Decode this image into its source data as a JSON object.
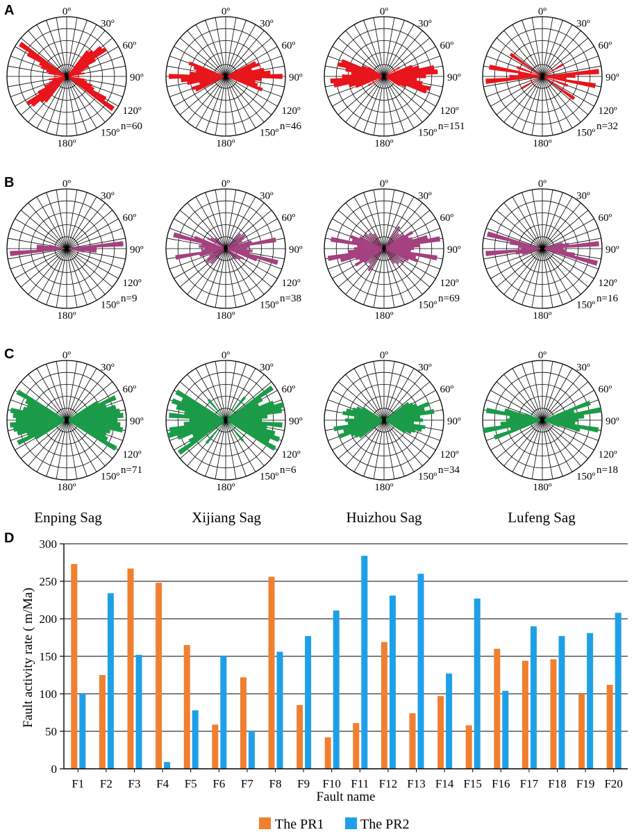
{
  "figure": {
    "panel_labels": [
      "A",
      "B",
      "C",
      "D"
    ],
    "sag_names": [
      "Enping Sag",
      "Xijiang Sag",
      "Huizhou Sag",
      "Lufeng Sag"
    ],
    "angle_labels": [
      "0º",
      "30º",
      "60º",
      "90º",
      "120º",
      "150º",
      "180º"
    ]
  },
  "rose_colors": {
    "A": "#e8141b",
    "B": "#a4407f",
    "C": "#1a9b48"
  },
  "chart_data": [
    {
      "type": "rose",
      "panel": "A",
      "sags": [
        {
          "name": "Enping Sag",
          "n_label": "n=60",
          "n": 60,
          "petals": [
            [
              40,
              0.55
            ],
            [
              45,
              0.6
            ],
            [
              50,
              0.75
            ],
            [
              55,
              0.8
            ],
            [
              60,
              0.55
            ],
            [
              65,
              0.4
            ],
            [
              70,
              0.3
            ],
            [
              75,
              0.25
            ],
            [
              80,
              0.3
            ],
            [
              90,
              0.2
            ],
            [
              100,
              0.3
            ],
            [
              105,
              0.35
            ],
            [
              110,
              0.45
            ],
            [
              115,
              0.5
            ],
            [
              120,
              0.75
            ],
            [
              125,
              0.95
            ]
          ]
        },
        {
          "name": "Xijiang Sag",
          "n_label": "n=46",
          "n": 46,
          "petals": [
            [
              65,
              0.55
            ],
            [
              70,
              0.6
            ],
            [
              75,
              0.45
            ],
            [
              80,
              0.65
            ],
            [
              85,
              0.75
            ],
            [
              90,
              0.95
            ],
            [
              95,
              0.6
            ],
            [
              100,
              0.5
            ],
            [
              105,
              0.55
            ],
            [
              110,
              0.65
            ]
          ]
        },
        {
          "name": "Huizhou Sag",
          "n_label": "n=151",
          "n": 151,
          "petals": [
            [
              60,
              0.3
            ],
            [
              70,
              0.5
            ],
            [
              75,
              0.6
            ],
            [
              80,
              0.85
            ],
            [
              85,
              0.9
            ],
            [
              90,
              0.7
            ],
            [
              95,
              0.55
            ],
            [
              100,
              0.65
            ],
            [
              105,
              0.8
            ],
            [
              110,
              0.75
            ],
            [
              115,
              0.4
            ],
            [
              120,
              0.3
            ]
          ]
        },
        {
          "name": "Lufeng Sag",
          "n_label": "n=32",
          "n": 32,
          "petals": [
            [
              60,
              0.4
            ],
            [
              85,
              0.95
            ],
            [
              90,
              0.55
            ],
            [
              95,
              0.4
            ],
            [
              100,
              0.9
            ],
            [
              110,
              0.45
            ],
            [
              125,
              0.65
            ]
          ]
        }
      ]
    },
    {
      "type": "rose",
      "panel": "B",
      "sags": [
        {
          "name": "Enping Sag",
          "n_label": "n=9",
          "n": 9,
          "petals": [
            [
              85,
              0.95
            ],
            [
              90,
              0.5
            ],
            [
              95,
              0.5
            ],
            [
              100,
              0.3
            ]
          ]
        },
        {
          "name": "Xijiang Sag",
          "n_label": "n=38",
          "n": 38,
          "petals": [
            [
              45,
              0.35
            ],
            [
              55,
              0.4
            ],
            [
              60,
              0.35
            ],
            [
              65,
              0.3
            ],
            [
              75,
              0.45
            ],
            [
              80,
              0.85
            ],
            [
              85,
              0.4
            ],
            [
              90,
              0.35
            ],
            [
              95,
              0.45
            ],
            [
              100,
              0.4
            ],
            [
              105,
              0.9
            ],
            [
              110,
              0.55
            ],
            [
              120,
              0.35
            ],
            [
              125,
              0.3
            ],
            [
              135,
              0.25
            ]
          ]
        },
        {
          "name": "Huizhou Sag",
          "n_label": "n=69",
          "n": 69,
          "petals": [
            [
              35,
              0.45
            ],
            [
              45,
              0.35
            ],
            [
              55,
              0.4
            ],
            [
              60,
              0.55
            ],
            [
              65,
              0.45
            ],
            [
              70,
              0.5
            ],
            [
              75,
              0.75
            ],
            [
              80,
              0.95
            ],
            [
              85,
              0.6
            ],
            [
              90,
              0.5
            ],
            [
              95,
              0.45
            ],
            [
              100,
              0.9
            ],
            [
              105,
              0.55
            ],
            [
              110,
              0.6
            ],
            [
              115,
              0.45
            ],
            [
              125,
              0.4
            ],
            [
              135,
              0.35
            ],
            [
              145,
              0.3
            ]
          ]
        },
        {
          "name": "Lufeng Sag",
          "n_label": "n=16",
          "n": 16,
          "petals": [
            [
              75,
              0.35
            ],
            [
              80,
              0.45
            ],
            [
              85,
              0.95
            ],
            [
              90,
              0.35
            ],
            [
              95,
              0.4
            ],
            [
              100,
              0.55
            ],
            [
              105,
              0.95
            ]
          ]
        }
      ]
    },
    {
      "type": "rose",
      "panel": "C",
      "sags": [
        {
          "name": "Enping Sag",
          "n_label": "n=71",
          "n": 71,
          "petals": [
            [
              60,
              0.6
            ],
            [
              65,
              0.9
            ],
            [
              70,
              0.7
            ],
            [
              75,
              0.85
            ],
            [
              80,
              0.9
            ],
            [
              85,
              0.95
            ],
            [
              90,
              0.85
            ],
            [
              95,
              0.9
            ],
            [
              100,
              0.95
            ],
            [
              105,
              0.75
            ],
            [
              110,
              0.7
            ],
            [
              115,
              0.75
            ],
            [
              120,
              0.95
            ]
          ]
        },
        {
          "name": "Xijiang Sag",
          "n_label": "n=6",
          "n": 6,
          "petals": [
            [
              40,
              0.5
            ],
            [
              55,
              0.95
            ],
            [
              60,
              0.7
            ],
            [
              65,
              0.6
            ],
            [
              70,
              0.85
            ],
            [
              75,
              1.0
            ],
            [
              80,
              0.95
            ],
            [
              85,
              0.7
            ],
            [
              90,
              0.6
            ],
            [
              95,
              0.95
            ],
            [
              100,
              0.7
            ],
            [
              105,
              0.85
            ],
            [
              110,
              0.95
            ],
            [
              115,
              0.8
            ],
            [
              120,
              0.95
            ],
            [
              140,
              0.45
            ]
          ]
        },
        {
          "name": "Huizhou Sag",
          "n_label": "n=34",
          "n": 34,
          "petals": [
            [
              55,
              0.5
            ],
            [
              60,
              0.55
            ],
            [
              65,
              0.6
            ],
            [
              70,
              0.8
            ],
            [
              75,
              0.7
            ],
            [
              80,
              0.85
            ],
            [
              85,
              0.6
            ],
            [
              90,
              0.65
            ],
            [
              95,
              0.5
            ],
            [
              100,
              0.7
            ],
            [
              105,
              0.65
            ],
            [
              110,
              0.55
            ],
            [
              115,
              0.5
            ],
            [
              120,
              0.4
            ]
          ]
        },
        {
          "name": "Lufeng Sag",
          "n_label": "n=18",
          "n": 18,
          "petals": [
            [
              70,
              0.85
            ],
            [
              75,
              0.55
            ],
            [
              80,
              1.0
            ],
            [
              85,
              0.7
            ],
            [
              90,
              0.6
            ],
            [
              95,
              0.55
            ],
            [
              100,
              0.95
            ],
            [
              105,
              0.65
            ],
            [
              110,
              0.3
            ]
          ]
        }
      ]
    },
    {
      "type": "bar",
      "panel": "D",
      "categories": [
        "F1",
        "F2",
        "F3",
        "F4",
        "F5",
        "F6",
        "F7",
        "F8",
        "F9",
        "F10",
        "F11",
        "F12",
        "F13",
        "F14",
        "F15",
        "F16",
        "F17",
        "F18",
        "F19",
        "F20"
      ],
      "series": [
        {
          "name": "The  PR1",
          "color": "#f08030",
          "values": [
            273,
            125,
            267,
            248,
            165,
            59,
            122,
            256,
            85,
            42,
            61,
            169,
            74,
            97,
            58,
            160,
            144,
            146,
            100,
            112
          ]
        },
        {
          "name": "The PR2",
          "color": "#1ea0e8",
          "values": [
            100,
            234,
            152,
            9,
            78,
            150,
            50,
            156,
            177,
            211,
            284,
            231,
            260,
            127,
            227,
            104,
            190,
            177,
            181,
            208
          ]
        }
      ],
      "xlabel": "Fault name",
      "ylabel": "Fault activity rate ( m/Ma)",
      "ylim": [
        0,
        300
      ],
      "yticks": [
        0,
        50,
        100,
        150,
        200,
        250,
        300
      ],
      "grid": "horizontal"
    }
  ]
}
